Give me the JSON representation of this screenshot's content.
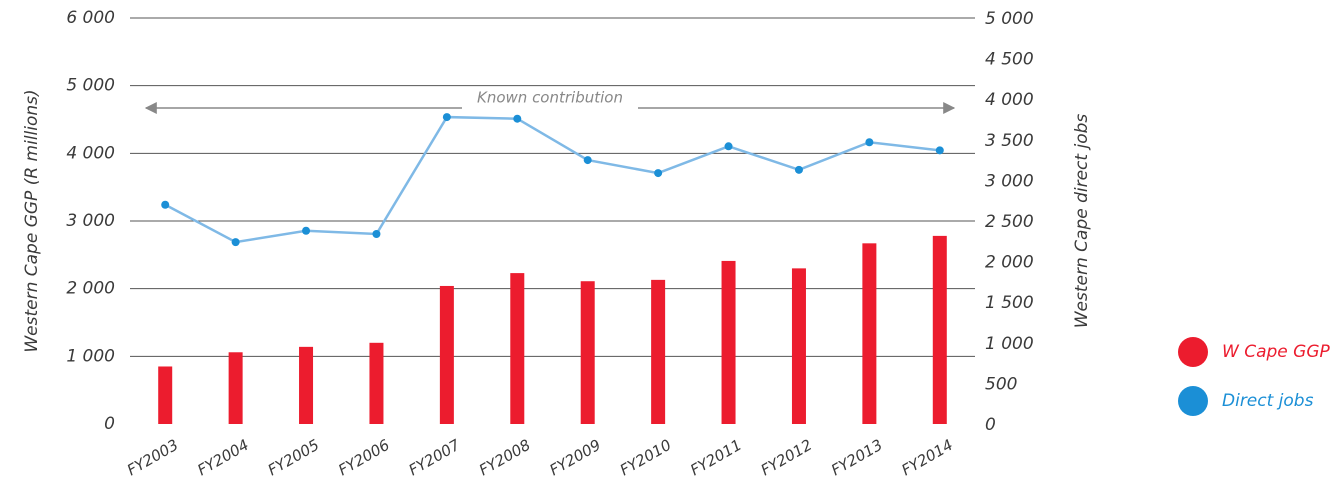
{
  "chart_data": {
    "type": "bar-line",
    "categories": [
      "FY2003",
      "FY2004",
      "FY2005",
      "FY2006",
      "FY2007",
      "FY2008",
      "FY2009",
      "FY2010",
      "FY2011",
      "FY2012",
      "FY2013",
      "FY2014"
    ],
    "series": [
      {
        "name": "W Cape GGP",
        "type": "bar",
        "color": "#ec1c2e",
        "values": [
          850,
          1060,
          1140,
          1200,
          2040,
          2230,
          2110,
          2130,
          2410,
          2300,
          2670,
          2780
        ]
      },
      {
        "name": "Direct jobs",
        "type": "line",
        "axis": "y2",
        "color": "#7fb9e6",
        "marker_color": "#1b8fd6",
        "values": [
          2700,
          2240,
          2380,
          2340,
          3780,
          3760,
          3250,
          3090,
          3420,
          3130,
          3470,
          3370
        ]
      }
    ],
    "ylabel": "Western Cape GGP (R millions)",
    "y2label": "Western Cape direct jobs",
    "ylim": [
      0,
      6000
    ],
    "yticks": [
      0,
      {
        "value": 1000,
        "label": "1 000"
      },
      {
        "value": 2000,
        "label": "2 000"
      },
      {
        "value": 3000,
        "label": "3 000"
      },
      {
        "value": 4000,
        "label": "4 000"
      },
      {
        "value": 5000,
        "label": "5 000"
      },
      {
        "value": 6000,
        "label": "6 000"
      }
    ],
    "y2lim": [
      0,
      5000
    ],
    "y2ticks": [
      0,
      500,
      {
        "value": 1000,
        "label": "1 000"
      },
      {
        "value": 1500,
        "label": "1 500"
      },
      {
        "value": 2000,
        "label": "2 000"
      },
      {
        "value": 2500,
        "label": "2 500"
      },
      {
        "value": 3000,
        "label": "3 000"
      },
      {
        "value": 3500,
        "label": "3 500"
      },
      {
        "value": 4000,
        "label": "4 000"
      },
      {
        "value": 4500,
        "label": "4 500"
      },
      {
        "value": 5000,
        "label": "5 000"
      }
    ],
    "annotation": "Known contribution",
    "grid": true,
    "legend": "right"
  }
}
